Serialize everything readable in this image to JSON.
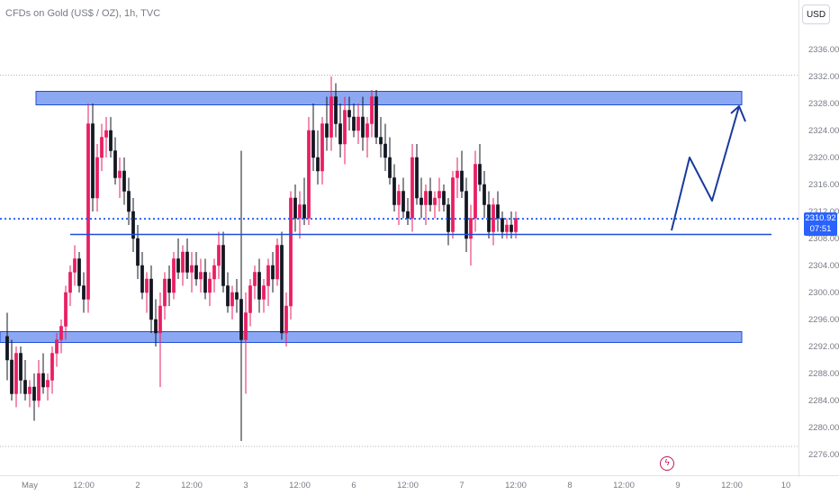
{
  "header": {
    "title": "CFDs on Gold (US$ / OZ), 1h, TVC"
  },
  "toolbar": {
    "currency_label": "USD"
  },
  "price_badge": {
    "price": "2310.92",
    "countdown": "07:51"
  },
  "events": {
    "icon": "lightning-event-icon"
  },
  "colors": {
    "up": "#ffffff",
    "up_border": "#e91e63",
    "down": "#131722",
    "zone_fill": "#6d8ff0",
    "zone_border": "#1e4fd6",
    "line": "#1e4fd6",
    "projection": "#1a3a9c",
    "current_price": "#2962ff"
  },
  "chart_data": {
    "type": "candlestick",
    "title": "CFDs on Gold (US$ / OZ), 1h, TVC",
    "ylim": [
      2274,
      2338
    ],
    "y_ticks": [
      "2336.00",
      "2332.00",
      "2328.00",
      "2324.00",
      "2320.00",
      "2316.00",
      "2312.00",
      "2308.00",
      "2304.00",
      "2300.00",
      "2296.00",
      "2292.00",
      "2288.00",
      "2284.00",
      "2280.00",
      "2276.00"
    ],
    "x_ticks": [
      {
        "label": "May",
        "bar": 5
      },
      {
        "label": "12:00",
        "bar": 17
      },
      {
        "label": "2",
        "bar": 29
      },
      {
        "label": "12:00",
        "bar": 41
      },
      {
        "label": "3",
        "bar": 53
      },
      {
        "label": "12:00",
        "bar": 65
      },
      {
        "label": "6",
        "bar": 77
      },
      {
        "label": "12:00",
        "bar": 89
      },
      {
        "label": "7",
        "bar": 101
      },
      {
        "label": "12:00",
        "bar": 113
      },
      {
        "label": "8",
        "bar": 125
      },
      {
        "label": "12:00",
        "bar": 137
      },
      {
        "label": "9",
        "bar": 149
      },
      {
        "label": "12:00",
        "bar": 161
      },
      {
        "label": "10",
        "bar": 173
      }
    ],
    "ohlc": [
      [
        2293.5,
        2297,
        2287,
        2290
      ],
      [
        2290,
        2293,
        2284,
        2285
      ],
      [
        2285,
        2292,
        2283,
        2291
      ],
      [
        2291,
        2292,
        2285,
        2287
      ],
      [
        2287,
        2290,
        2284,
        2285
      ],
      [
        2285,
        2287,
        2283,
        2286
      ],
      [
        2286,
        2288,
        2281,
        2284
      ],
      [
        2284,
        2290,
        2283,
        2288
      ],
      [
        2288,
        2291,
        2285,
        2286
      ],
      [
        2286,
        2288,
        2284,
        2287
      ],
      [
        2287,
        2292,
        2285,
        2291
      ],
      [
        2291,
        2294,
        2289,
        2293
      ],
      [
        2293,
        2296,
        2291,
        2295
      ],
      [
        2295,
        2301,
        2293,
        2300
      ],
      [
        2300,
        2304,
        2298,
        2303
      ],
      [
        2303,
        2307,
        2301,
        2305
      ],
      [
        2305,
        2306,
        2300,
        2301
      ],
      [
        2301,
        2303,
        2297,
        2299
      ],
      [
        2299,
        2328,
        2297,
        2325
      ],
      [
        2325,
        2328,
        2312,
        2314
      ],
      [
        2314,
        2322,
        2312,
        2320
      ],
      [
        2320,
        2325,
        2318,
        2323
      ],
      [
        2323,
        2326,
        2320,
        2324
      ],
      [
        2324,
        2326,
        2320,
        2321
      ],
      [
        2321,
        2323,
        2316,
        2317
      ],
      [
        2317,
        2320,
        2314,
        2318
      ],
      [
        2318,
        2320,
        2313,
        2315
      ],
      [
        2315,
        2317,
        2310,
        2312
      ],
      [
        2312,
        2314,
        2306,
        2308
      ],
      [
        2308,
        2310,
        2302,
        2304
      ],
      [
        2304,
        2306,
        2299,
        2300
      ],
      [
        2300,
        2303,
        2297,
        2302
      ],
      [
        2302,
        2304,
        2294,
        2296
      ],
      [
        2296,
        2299,
        2292,
        2294
      ],
      [
        2294,
        2300,
        2286,
        2298
      ],
      [
        2298,
        2303,
        2296,
        2302
      ],
      [
        2302,
        2304,
        2298,
        2300
      ],
      [
        2300,
        2306,
        2299,
        2305
      ],
      [
        2305,
        2308,
        2302,
        2303
      ],
      [
        2303,
        2307,
        2301,
        2306
      ],
      [
        2306,
        2308,
        2302,
        2303
      ],
      [
        2303,
        2306,
        2300,
        2304
      ],
      [
        2304,
        2306,
        2301,
        2302
      ],
      [
        2302,
        2305,
        2300,
        2303
      ],
      [
        2303,
        2305,
        2299,
        2300
      ],
      [
        2300,
        2303,
        2298,
        2302
      ],
      [
        2302,
        2305,
        2300,
        2304
      ],
      [
        2304,
        2309,
        2302,
        2307
      ],
      [
        2307,
        2309,
        2300,
        2301
      ],
      [
        2301,
        2303,
        2297,
        2298
      ],
      [
        2298,
        2301,
        2296,
        2300
      ],
      [
        2300,
        2302,
        2297,
        2299
      ],
      [
        2299,
        2321,
        2278,
        2293
      ],
      [
        2293,
        2300,
        2285,
        2297
      ],
      [
        2297,
        2302,
        2295,
        2301
      ],
      [
        2301,
        2304,
        2299,
        2303
      ],
      [
        2303,
        2305,
        2297,
        2299
      ],
      [
        2299,
        2302,
        2297,
        2301
      ],
      [
        2301,
        2305,
        2298,
        2304
      ],
      [
        2304,
        2306,
        2300,
        2302
      ],
      [
        2302,
        2308,
        2301,
        2307
      ],
      [
        2307,
        2309,
        2293,
        2294
      ],
      [
        2294,
        2300,
        2292,
        2298
      ],
      [
        2298,
        2315,
        2296,
        2314
      ],
      [
        2314,
        2316,
        2309,
        2311
      ],
      [
        2311,
        2315,
        2308,
        2313
      ],
      [
        2313,
        2317,
        2310,
        2311
      ],
      [
        2311,
        2326,
        2310,
        2324
      ],
      [
        2324,
        2328,
        2318,
        2320
      ],
      [
        2320,
        2324,
        2316,
        2318
      ],
      [
        2318,
        2326,
        2316,
        2325
      ],
      [
        2325,
        2329,
        2321,
        2323
      ],
      [
        2323,
        2332,
        2321,
        2329
      ],
      [
        2329,
        2331,
        2323,
        2325
      ],
      [
        2325,
        2328,
        2320,
        2322
      ],
      [
        2322,
        2329,
        2319,
        2327
      ],
      [
        2327,
        2329,
        2324,
        2326
      ],
      [
        2326,
        2328,
        2323,
        2324
      ],
      [
        2324,
        2328,
        2322,
        2326
      ],
      [
        2326,
        2329,
        2321,
        2323
      ],
      [
        2323,
        2326,
        2320,
        2325
      ],
      [
        2325,
        2330,
        2323,
        2329
      ],
      [
        2329,
        2330,
        2322,
        2323
      ],
      [
        2323,
        2326,
        2320,
        2322
      ],
      [
        2322,
        2325,
        2318,
        2320
      ],
      [
        2320,
        2323,
        2316,
        2317
      ],
      [
        2317,
        2319,
        2312,
        2313
      ],
      [
        2313,
        2316,
        2310,
        2315
      ],
      [
        2315,
        2317,
        2311,
        2312
      ],
      [
        2312,
        2314,
        2310,
        2311
      ],
      [
        2311,
        2322,
        2309,
        2320
      ],
      [
        2320,
        2322,
        2313,
        2314
      ],
      [
        2314,
        2317,
        2311,
        2313
      ],
      [
        2313,
        2316,
        2310,
        2315
      ],
      [
        2315,
        2317,
        2312,
        2313
      ],
      [
        2313,
        2315,
        2311,
        2314
      ],
      [
        2314,
        2317,
        2312,
        2315
      ],
      [
        2315,
        2316,
        2312,
        2313
      ],
      [
        2313,
        2314,
        2307,
        2309
      ],
      [
        2309,
        2318,
        2308,
        2317
      ],
      [
        2317,
        2320,
        2314,
        2318
      ],
      [
        2318,
        2321,
        2314,
        2315
      ],
      [
        2315,
        2317,
        2306,
        2308
      ],
      [
        2308,
        2313,
        2304,
        2311
      ],
      [
        2311,
        2321,
        2309,
        2319
      ],
      [
        2319,
        2322,
        2315,
        2316
      ],
      [
        2316,
        2318,
        2311,
        2313
      ],
      [
        2313,
        2315,
        2308,
        2309
      ],
      [
        2309,
        2314,
        2307,
        2313
      ],
      [
        2313,
        2315,
        2309,
        2311
      ],
      [
        2311,
        2312,
        2308,
        2309
      ],
      [
        2309,
        2311,
        2308,
        2310
      ],
      [
        2310,
        2312,
        2308,
        2309
      ],
      [
        2309,
        2312,
        2308,
        2311
      ]
    ],
    "zones": [
      {
        "name": "resistance",
        "from_bar": 2,
        "to_bar": 162,
        "y_low": 2327.8,
        "y_high": 2329.8
      },
      {
        "name": "support",
        "from_bar": 0,
        "to_bar": 162,
        "y_low": 2292.6,
        "y_high": 2294.2
      }
    ],
    "hline": {
      "y": 2308.6,
      "from_bar": 4,
      "to_bar": 170
    },
    "current_price": 2310.92,
    "dotted_levels": [
      2332.2,
      2277.2
    ],
    "projection": [
      {
        "bar": 148,
        "y": 2309.2
      },
      {
        "bar": 152,
        "y": 2320.0
      },
      {
        "bar": 157,
        "y": 2313.6
      },
      {
        "bar": 163,
        "y": 2327.6
      },
      {
        "bar": 164.5,
        "y": 2325.4
      }
    ]
  }
}
